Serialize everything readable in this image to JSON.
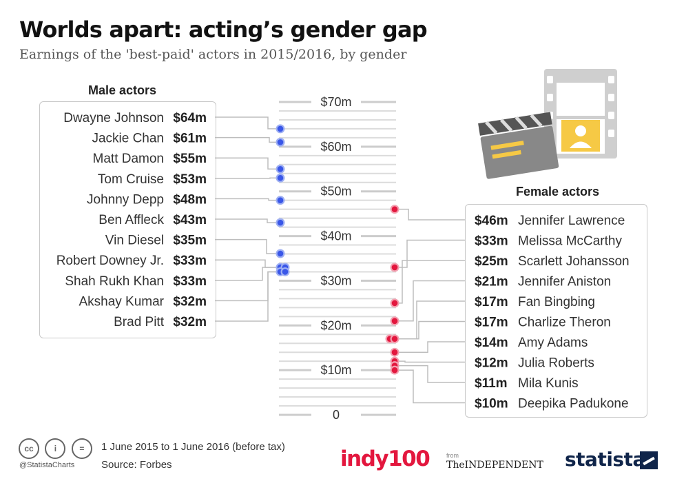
{
  "header": {
    "title": "Worlds apart: acting’s gender gap",
    "subtitle": "Earnings of the 'best-paid' actors in 2015/2016, by gender"
  },
  "chart_data": {
    "type": "scatter",
    "title": "Worlds apart: acting’s gender gap",
    "subtitle": "Earnings of the 'best-paid' actors in 2015/2016, by gender",
    "ylim": [
      0,
      70
    ],
    "ticks": [
      {
        "value": 70,
        "label": "$70m"
      },
      {
        "value": 60,
        "label": "$60m"
      },
      {
        "value": 50,
        "label": "$50m"
      },
      {
        "value": 40,
        "label": "$40m"
      },
      {
        "value": 30,
        "label": "$30m"
      },
      {
        "value": 20,
        "label": "$20m"
      },
      {
        "value": 10,
        "label": "$10m"
      },
      {
        "value": 0,
        "label": "0"
      }
    ],
    "series": [
      {
        "name": "Male actors",
        "color": "#3a57e8",
        "points": [
          {
            "name": "Dwayne Johnson",
            "value": 64,
            "label": "$64m"
          },
          {
            "name": "Jackie Chan",
            "value": 61,
            "label": "$61m"
          },
          {
            "name": "Matt Damon",
            "value": 55,
            "label": "$55m"
          },
          {
            "name": "Tom Cruise",
            "value": 53,
            "label": "$53m"
          },
          {
            "name": "Johnny Depp",
            "value": 48,
            "label": "$48m"
          },
          {
            "name": "Ben Affleck",
            "value": 43,
            "label": "$43m"
          },
          {
            "name": "Vin Diesel",
            "value": 35,
            "label": "$35m"
          },
          {
            "name": "Robert Downey Jr.",
            "value": 33,
            "label": "$33m"
          },
          {
            "name": "Shah Rukh Khan",
            "value": 33,
            "label": "$33m"
          },
          {
            "name": "Akshay Kumar",
            "value": 32,
            "label": "$32m"
          },
          {
            "name": "Brad Pitt",
            "value": 32,
            "label": "$32m"
          }
        ]
      },
      {
        "name": "Female actors",
        "color": "#e3173e",
        "points": [
          {
            "name": "Jennifer Lawrence",
            "value": 46,
            "label": "$46m"
          },
          {
            "name": "Melissa McCarthy",
            "value": 33,
            "label": "$33m"
          },
          {
            "name": "Scarlett Johansson",
            "value": 25,
            "label": "$25m"
          },
          {
            "name": "Jennifer Aniston",
            "value": 21,
            "label": "$21m"
          },
          {
            "name": "Fan Bingbing",
            "value": 17,
            "label": "$17m"
          },
          {
            "name": "Charlize Theron",
            "value": 17,
            "label": "$17m"
          },
          {
            "name": "Amy Adams",
            "value": 14,
            "label": "$14m"
          },
          {
            "name": "Julia Roberts",
            "value": 12,
            "label": "$12m"
          },
          {
            "name": "Mila Kunis",
            "value": 11,
            "label": "$11m"
          },
          {
            "name": "Deepika Padukone",
            "value": 10,
            "label": "$10m"
          }
        ]
      }
    ]
  },
  "footer": {
    "period": "1 June 2015 to 1 June 2016 (before tax)",
    "source": "Source: Forbes",
    "handle": "@StatistaCharts",
    "cc_labels": [
      "cc",
      "i",
      "="
    ],
    "logos": {
      "indy": "indy100",
      "from": "from",
      "independent": "TheINDEPENDENT",
      "statista": "statista"
    }
  },
  "icons": [
    "clapperboard-icon",
    "film-strip-icon",
    "person-icon",
    "creative-commons-icon",
    "attribution-icon",
    "no-derivatives-icon"
  ]
}
